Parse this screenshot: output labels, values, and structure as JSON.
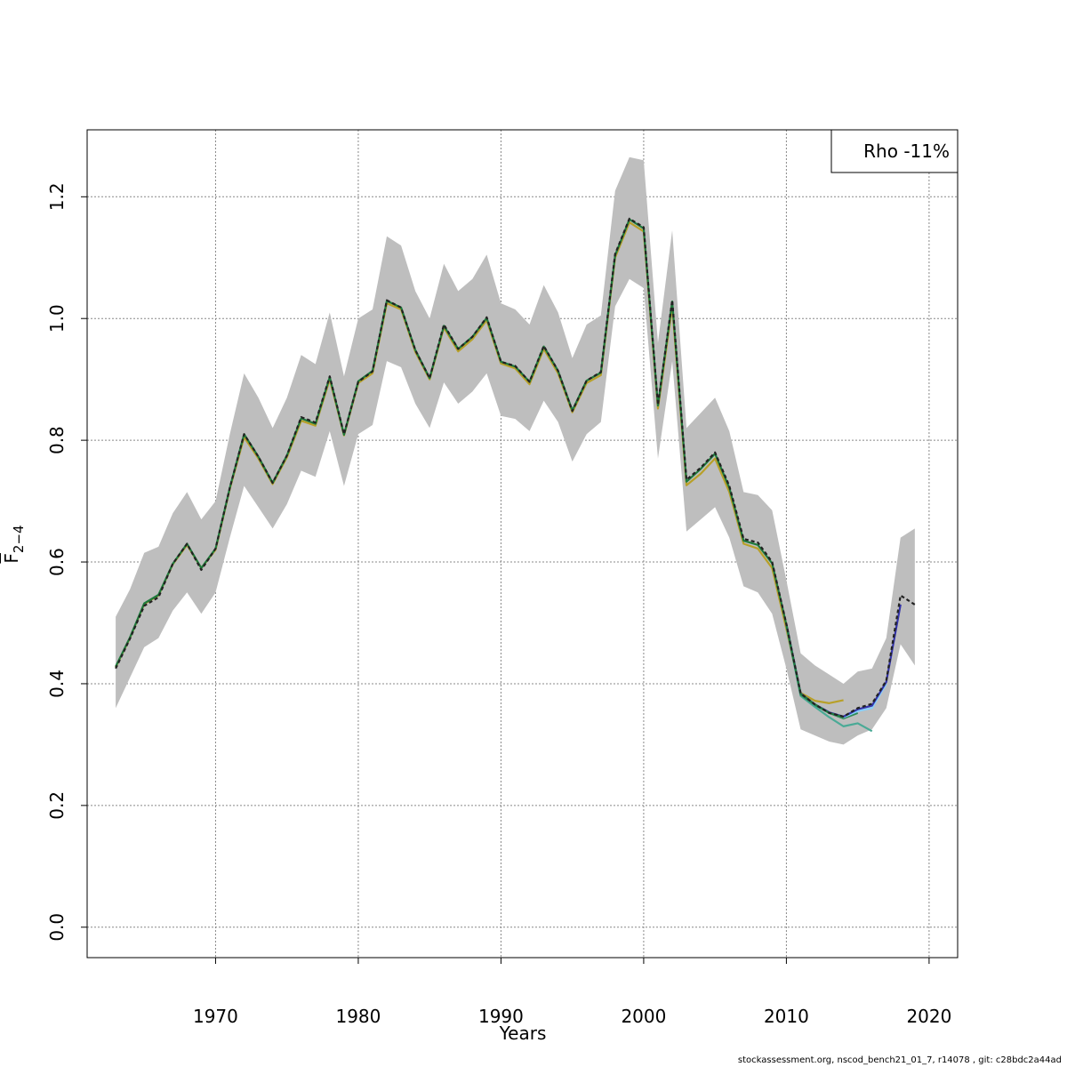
{
  "chart_data": {
    "type": "line",
    "xlabel": "Years",
    "ylabel": {
      "base": "F",
      "subscript": "2−4"
    },
    "xlim": [
      1961,
      2022
    ],
    "ylim": [
      -0.05,
      1.31
    ],
    "x_ticks": [
      1970,
      1980,
      1990,
      2000,
      2010,
      2020
    ],
    "x_tick_labels": [
      "1970",
      "1980",
      "1990",
      "2000",
      "2010",
      "2020"
    ],
    "y_ticks": [
      0.0,
      0.2,
      0.4,
      0.6,
      0.8,
      1.0,
      1.2
    ],
    "y_tick_labels": [
      "0.0",
      "0.2",
      "0.4",
      "0.6",
      "0.8",
      "1.0",
      "1.2"
    ],
    "grid": true,
    "legend": {
      "position": "top-right",
      "text": "Rho -11%"
    },
    "confidence_band": {
      "color": "#bebebe",
      "x": [
        1963,
        1964,
        1965,
        1966,
        1967,
        1968,
        1969,
        1970,
        1971,
        1972,
        1973,
        1974,
        1975,
        1976,
        1977,
        1978,
        1979,
        1980,
        1981,
        1982,
        1983,
        1984,
        1985,
        1986,
        1987,
        1988,
        1989,
        1990,
        1991,
        1992,
        1993,
        1994,
        1995,
        1996,
        1997,
        1998,
        1999,
        2000,
        2001,
        2002,
        2003,
        2004,
        2005,
        2006,
        2007,
        2008,
        2009,
        2010,
        2011,
        2012,
        2013,
        2014,
        2015,
        2016,
        2017,
        2018,
        2019
      ],
      "lower": [
        0.36,
        0.41,
        0.46,
        0.475,
        0.52,
        0.55,
        0.515,
        0.55,
        0.64,
        0.725,
        0.69,
        0.655,
        0.695,
        0.75,
        0.74,
        0.815,
        0.725,
        0.81,
        0.825,
        0.93,
        0.92,
        0.86,
        0.82,
        0.895,
        0.86,
        0.88,
        0.91,
        0.84,
        0.835,
        0.815,
        0.865,
        0.83,
        0.765,
        0.81,
        0.83,
        1.02,
        1.065,
        1.05,
        0.77,
        0.93,
        0.65,
        0.67,
        0.69,
        0.64,
        0.56,
        0.55,
        0.515,
        0.425,
        0.325,
        0.315,
        0.305,
        0.3,
        0.315,
        0.325,
        0.36,
        0.465,
        0.43
      ],
      "upper": [
        0.51,
        0.555,
        0.615,
        0.625,
        0.68,
        0.715,
        0.67,
        0.7,
        0.81,
        0.91,
        0.87,
        0.82,
        0.87,
        0.94,
        0.925,
        1.01,
        0.905,
        1.0,
        1.015,
        1.135,
        1.12,
        1.045,
        1.0,
        1.09,
        1.045,
        1.065,
        1.105,
        1.025,
        1.015,
        0.99,
        1.055,
        1.01,
        0.935,
        0.99,
        1.005,
        1.21,
        1.265,
        1.26,
        0.96,
        1.145,
        0.82,
        0.845,
        0.87,
        0.815,
        0.715,
        0.71,
        0.685,
        0.57,
        0.45,
        0.43,
        0.415,
        0.4,
        0.42,
        0.425,
        0.475,
        0.64,
        0.655
      ]
    },
    "series": [
      {
        "color": "#b8a029",
        "dash": false,
        "x": [
          1963,
          1964,
          1965,
          1966,
          1967,
          1968,
          1969,
          1970,
          1971,
          1972,
          1973,
          1974,
          1975,
          1976,
          1977,
          1978,
          1979,
          1980,
          1981,
          1982,
          1983,
          1984,
          1985,
          1986,
          1987,
          1988,
          1989,
          1990,
          1991,
          1992,
          1993,
          1994,
          1995,
          1996,
          1997,
          1998,
          1999,
          2000,
          2001,
          2002,
          2003,
          2004,
          2005,
          2006,
          2007,
          2008,
          2009,
          2010,
          2011,
          2012,
          2013,
          2014
        ],
        "y": [
          0.427,
          0.475,
          0.531,
          0.545,
          0.596,
          0.628,
          0.59,
          0.62,
          0.72,
          0.805,
          0.77,
          0.728,
          0.772,
          0.832,
          0.824,
          0.9,
          0.808,
          0.894,
          0.91,
          1.025,
          1.015,
          0.945,
          0.9,
          0.985,
          0.946,
          0.966,
          0.997,
          0.926,
          0.918,
          0.892,
          0.95,
          0.91,
          0.846,
          0.894,
          0.907,
          1.1,
          1.158,
          1.143,
          0.852,
          1.02,
          0.726,
          0.745,
          0.77,
          0.715,
          0.63,
          0.622,
          0.59,
          0.49,
          0.385,
          0.372,
          0.368,
          0.373
        ]
      },
      {
        "color": "#4aaa96",
        "dash": false,
        "x": [
          2010,
          2011,
          2012,
          2013,
          2014,
          2015,
          2016
        ],
        "y": [
          0.495,
          0.38,
          0.362,
          0.345,
          0.33,
          0.335,
          0.322
        ]
      },
      {
        "color": "#2e8b57",
        "dash": false,
        "x": [
          2010,
          2011,
          2012,
          2013,
          2014,
          2015
        ],
        "y": [
          0.497,
          0.382,
          0.365,
          0.352,
          0.343,
          0.352
        ]
      },
      {
        "color": "#87cefa",
        "dash": false,
        "x": [
          2010,
          2011,
          2012,
          2013,
          2014,
          2015,
          2016,
          2017
        ],
        "y": [
          0.498,
          0.383,
          0.366,
          0.352,
          0.345,
          0.355,
          0.36,
          0.4
        ]
      },
      {
        "color": "#3333aa",
        "dash": false,
        "x": [
          2010,
          2011,
          2012,
          2013,
          2014,
          2015,
          2016,
          2017,
          2018
        ],
        "y": [
          0.498,
          0.384,
          0.366,
          0.353,
          0.346,
          0.358,
          0.364,
          0.403,
          0.53
        ]
      },
      {
        "color": "#1e7a3c",
        "dash": false,
        "x": [
          1963,
          1964,
          1965,
          1966,
          1967,
          1968,
          1969,
          1970,
          1971,
          1972,
          1973,
          1974,
          1975,
          1976,
          1977,
          1978,
          1979,
          1980,
          1981,
          1982,
          1983,
          1984,
          1985,
          1986,
          1987,
          1988,
          1989,
          1990,
          1991,
          1992,
          1993,
          1994,
          1995,
          1996,
          1997,
          1998,
          1999,
          2000,
          2001,
          2002,
          2003,
          2004,
          2005,
          2006,
          2007,
          2008,
          2009,
          2010,
          2011,
          2012,
          2013,
          2014
        ],
        "y": [
          0.428,
          0.476,
          0.532,
          0.546,
          0.597,
          0.63,
          0.59,
          0.622,
          0.722,
          0.81,
          0.773,
          0.73,
          0.775,
          0.836,
          0.827,
          0.904,
          0.809,
          0.897,
          0.914,
          1.029,
          1.018,
          0.948,
          0.902,
          0.988,
          0.95,
          0.97,
          1.001,
          0.929,
          0.921,
          0.896,
          0.954,
          0.914,
          0.849,
          0.898,
          0.911,
          1.104,
          1.163,
          1.148,
          0.857,
          1.028,
          0.732,
          0.753,
          0.778,
          0.722,
          0.635,
          0.628,
          0.598,
          0.497,
          0.383,
          0.366,
          0.352,
          0.345
        ]
      },
      {
        "color": "#222222",
        "dash": true,
        "x": [
          1963,
          1964,
          1965,
          1966,
          1967,
          1968,
          1969,
          1970,
          1971,
          1972,
          1973,
          1974,
          1975,
          1976,
          1977,
          1978,
          1979,
          1980,
          1981,
          1982,
          1983,
          1984,
          1985,
          1986,
          1987,
          1988,
          1989,
          1990,
          1991,
          1992,
          1993,
          1994,
          1995,
          1996,
          1997,
          1998,
          1999,
          2000,
          2001,
          2002,
          2003,
          2004,
          2005,
          2006,
          2007,
          2008,
          2009,
          2010,
          2011,
          2012,
          2013,
          2014,
          2015,
          2016,
          2017,
          2018,
          2019
        ],
        "y": [
          0.425,
          0.474,
          0.528,
          0.542,
          0.597,
          0.63,
          0.587,
          0.622,
          0.722,
          0.81,
          0.773,
          0.73,
          0.775,
          0.838,
          0.829,
          0.905,
          0.81,
          0.896,
          0.913,
          1.03,
          1.018,
          0.948,
          0.902,
          0.99,
          0.95,
          0.97,
          1.002,
          0.929,
          0.922,
          0.896,
          0.955,
          0.914,
          0.848,
          0.898,
          0.912,
          1.106,
          1.164,
          1.15,
          0.858,
          1.03,
          0.735,
          0.755,
          0.78,
          0.725,
          0.638,
          0.632,
          0.6,
          0.498,
          0.384,
          0.366,
          0.352,
          0.346,
          0.36,
          0.367,
          0.405,
          0.545,
          0.53
        ]
      }
    ]
  },
  "footer": "stockassessment.org, nscod_bench21_01_7, r14078 , git: c28bdc2a44ad"
}
